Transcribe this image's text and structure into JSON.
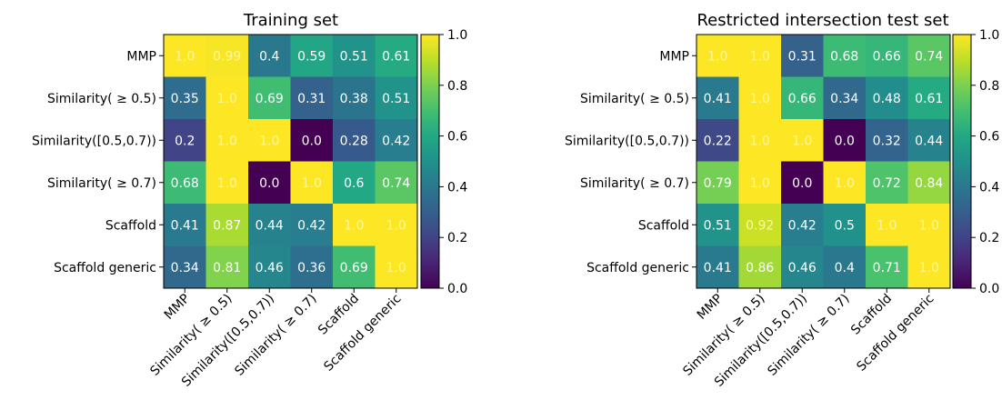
{
  "chart_data": [
    {
      "type": "heatmap",
      "title": "Training set",
      "row_labels": [
        "MMP",
        "Similarity( ≥ 0.5)",
        "Similarity([0.5,0.7))",
        "Similarity( ≥ 0.7)",
        "Scaffold",
        "Scaffold generic"
      ],
      "col_labels": [
        "MMP",
        "Similarity( ≥ 0.5)",
        "Similarity([0.5,0.7))",
        "Similarity( ≥ 0.7)",
        "Scaffold",
        "Scaffold generic"
      ],
      "values": [
        [
          1.0,
          0.99,
          0.4,
          0.59,
          0.51,
          0.61
        ],
        [
          0.35,
          1.0,
          0.69,
          0.31,
          0.38,
          0.51
        ],
        [
          0.2,
          1.0,
          1.0,
          0.0,
          0.28,
          0.42
        ],
        [
          0.68,
          1.0,
          0.0,
          1.0,
          0.6,
          0.74
        ],
        [
          0.41,
          0.87,
          0.44,
          0.42,
          1.0,
          1.0
        ],
        [
          0.34,
          0.81,
          0.46,
          0.36,
          0.69,
          1.0
        ]
      ],
      "cell_labels": [
        [
          "1.0",
          "0.99",
          "0.4",
          "0.59",
          "0.51",
          "0.61"
        ],
        [
          "0.35",
          "1.0",
          "0.69",
          "0.31",
          "0.38",
          "0.51"
        ],
        [
          "0.2",
          "1.0",
          "1.0",
          "0.0",
          "0.28",
          "0.42"
        ],
        [
          "0.68",
          "1.0",
          "0.0",
          "1.0",
          "0.6",
          "0.74"
        ],
        [
          "0.41",
          "0.87",
          "0.44",
          "0.42",
          "1.0",
          "1.0"
        ],
        [
          "0.34",
          "0.81",
          "0.46",
          "0.36",
          "0.69",
          "1.0"
        ]
      ],
      "colorbar": {
        "range": [
          0.0,
          1.0
        ],
        "ticks": [
          "0.0",
          "0.2",
          "0.4",
          "0.6",
          "0.8",
          "1.0"
        ]
      },
      "colormap": "viridis"
    },
    {
      "type": "heatmap",
      "title": "Restricted intersection test set",
      "row_labels": [
        "MMP",
        "Similarity( ≥ 0.5)",
        "Similarity([0.5,0.7))",
        "Similarity( ≥ 0.7)",
        "Scaffold",
        "Scaffold generic"
      ],
      "col_labels": [
        "MMP",
        "Similarity( ≥ 0.5)",
        "Similarity([0.5,0.7))",
        "Similarity( ≥ 0.7)",
        "Scaffold",
        "Scaffold generic"
      ],
      "values": [
        [
          1.0,
          1.0,
          0.31,
          0.68,
          0.66,
          0.74
        ],
        [
          0.41,
          1.0,
          0.66,
          0.34,
          0.48,
          0.61
        ],
        [
          0.22,
          1.0,
          1.0,
          0.0,
          0.32,
          0.44
        ],
        [
          0.79,
          1.0,
          0.0,
          1.0,
          0.72,
          0.84
        ],
        [
          0.51,
          0.92,
          0.42,
          0.5,
          1.0,
          1.0
        ],
        [
          0.41,
          0.86,
          0.46,
          0.4,
          0.71,
          1.0
        ]
      ],
      "cell_labels": [
        [
          "1.0",
          "1.0",
          "0.31",
          "0.68",
          "0.66",
          "0.74"
        ],
        [
          "0.41",
          "1.0",
          "0.66",
          "0.34",
          "0.48",
          "0.61"
        ],
        [
          "0.22",
          "1.0",
          "1.0",
          "0.0",
          "0.32",
          "0.44"
        ],
        [
          "0.79",
          "1.0",
          "0.0",
          "1.0",
          "0.72",
          "0.84"
        ],
        [
          "0.51",
          "0.92",
          "0.42",
          "0.5",
          "1.0",
          "1.0"
        ],
        [
          "0.41",
          "0.86",
          "0.46",
          "0.4",
          "0.71",
          "1.0"
        ]
      ],
      "colorbar": {
        "range": [
          0.0,
          1.0
        ],
        "ticks": [
          "0.0",
          "0.2",
          "0.4",
          "0.6",
          "0.8",
          "1.0"
        ]
      },
      "colormap": "viridis"
    }
  ]
}
